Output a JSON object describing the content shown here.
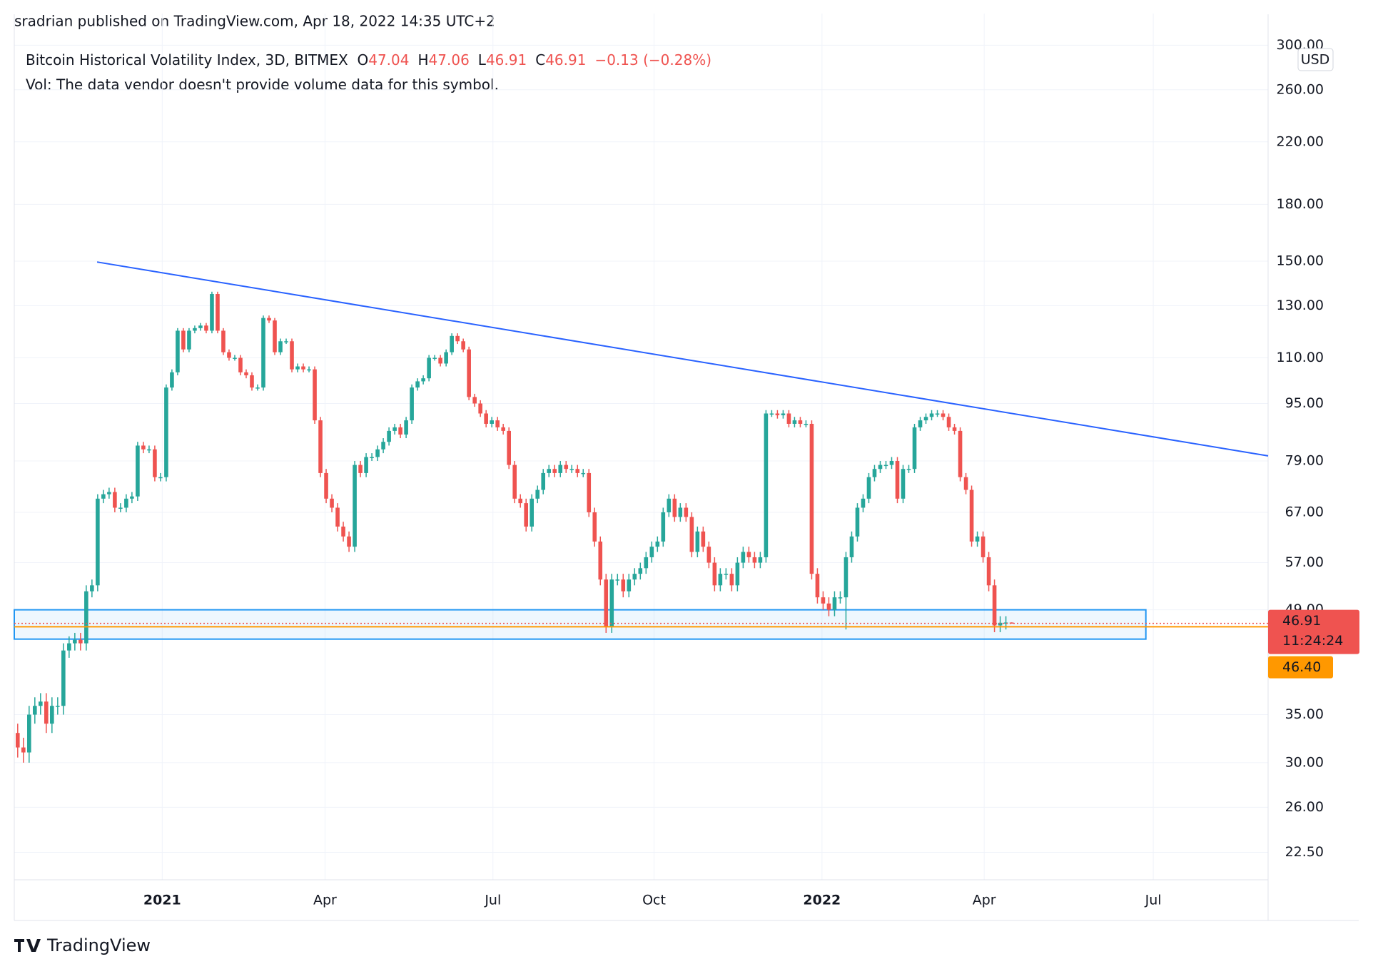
{
  "chart_data": {
    "type": "candlestick",
    "attribution": "sradrian published on TradingView.com, Apr 18, 2022 14:35 UTC+2",
    "title": "Bitcoin Historical Volatility Index, 3D, BITMEX",
    "ohlc_labels": [
      "O",
      "H",
      "L",
      "C"
    ],
    "change": "−0.13 (−0.28%)",
    "volume_note": "Vol: The data vendor doesn't provide volume data for this symbol.",
    "currency": "USD",
    "countdown": "11:24:24",
    "brand": "TradingView",
    "up_color": "#26a69a",
    "down_color": "#ef5350",
    "log_scale": true,
    "grid": true,
    "xlim": [
      -0.6,
      218.9
    ],
    "ylim": [
      20.6,
      310
    ],
    "xticks": [
      {
        "value": 25.3,
        "label": "2021"
      },
      {
        "value": 53.8,
        "label": "Apr"
      },
      {
        "value": 83.2,
        "label": "Jul"
      },
      {
        "value": 111.4,
        "label": "Oct"
      },
      {
        "value": 140.8,
        "label": "2022"
      },
      {
        "value": 169.2,
        "label": "Apr"
      },
      {
        "value": 198.8,
        "label": "Jul"
      }
    ],
    "yticks": [
      {
        "value": 22.5,
        "label": "22.50"
      },
      {
        "value": 26,
        "label": "26.00"
      },
      {
        "value": 30,
        "label": "30.00"
      },
      {
        "value": 35,
        "label": "35.00"
      },
      {
        "value": 49,
        "label": "49.00"
      },
      {
        "value": 57,
        "label": "57.00"
      },
      {
        "value": 67,
        "label": "67.00"
      },
      {
        "value": 79,
        "label": "79.00"
      },
      {
        "value": 95,
        "label": "95.00"
      },
      {
        "value": 110,
        "label": "110.00"
      },
      {
        "value": 130,
        "label": "130.00"
      },
      {
        "value": 150,
        "label": "150.00"
      },
      {
        "value": 180,
        "label": "180.00"
      },
      {
        "value": 220,
        "label": "220.00"
      },
      {
        "value": 260,
        "label": "260.00"
      },
      {
        "value": 300,
        "label": "300.00"
      }
    ],
    "open": [
      33,
      31.5,
      31,
      35,
      36,
      36.5,
      34,
      36,
      36,
      43,
      44,
      44.5,
      44,
      52,
      53,
      70,
      71,
      71.5,
      68,
      68,
      70,
      70.5,
      83,
      82,
      82,
      75,
      75,
      100,
      105,
      120,
      113,
      120,
      121,
      122,
      120,
      135,
      120,
      112,
      110,
      110,
      105,
      104,
      100,
      100,
      125,
      124,
      112,
      116,
      116,
      106,
      107,
      106,
      106,
      90,
      76,
      70,
      68,
      64,
      62,
      60,
      78,
      76,
      80,
      80,
      82,
      84,
      87,
      88,
      86,
      90,
      100,
      102,
      103,
      110,
      110,
      108,
      112,
      118,
      116,
      113,
      97,
      95,
      92,
      89,
      90,
      88,
      87,
      78,
      70,
      69,
      64,
      70,
      72,
      76,
      77,
      76,
      78,
      77,
      77,
      76,
      76,
      67,
      61,
      54,
      46.5,
      54,
      54,
      52,
      54,
      55,
      56,
      58,
      60,
      61,
      67,
      70,
      66,
      68,
      66,
      59,
      63,
      60,
      57,
      53,
      55,
      55,
      53,
      57,
      59,
      58,
      57,
      58,
      92,
      92,
      91.5,
      92,
      89,
      90,
      89,
      89,
      55,
      51,
      50,
      49,
      51,
      51,
      58,
      62,
      68,
      70,
      75,
      77,
      78,
      78,
      79,
      70,
      77,
      77,
      88,
      90,
      91,
      92,
      92,
      91,
      88,
      87,
      75,
      72,
      61,
      62,
      58,
      53,
      46.6,
      47,
      47.04
    ],
    "high": [
      34,
      32.5,
      36,
      37,
      37.5,
      37.5,
      37,
      37,
      44,
      45,
      45.5,
      45.5,
      53,
      54,
      71,
      72,
      72.5,
      72.5,
      69,
      71,
      71.5,
      84,
      84,
      83,
      83,
      76,
      101,
      106,
      121,
      121,
      121,
      122,
      123,
      123,
      136,
      136,
      121,
      113,
      111,
      111,
      106,
      105,
      101,
      126,
      126,
      125,
      117,
      117,
      117,
      108,
      108,
      107,
      107,
      91,
      77,
      71,
      69,
      65,
      63,
      79,
      79,
      81,
      81,
      83,
      85,
      88,
      89,
      89,
      91,
      101,
      103,
      104,
      111,
      111,
      111,
      113,
      119,
      119,
      117,
      114,
      98,
      96,
      93,
      91,
      91,
      89,
      88,
      79,
      71,
      70,
      71,
      73,
      77,
      78,
      78,
      79,
      79,
      78,
      78,
      77,
      77,
      68,
      62,
      55,
      55,
      55,
      55,
      55,
      56,
      57,
      59,
      61,
      62,
      68,
      71,
      71,
      69,
      69,
      67,
      64,
      64,
      61,
      58,
      56,
      56,
      56,
      58,
      60,
      60,
      59,
      59,
      93,
      93,
      93,
      93,
      93,
      91,
      91,
      90,
      90,
      56,
      52,
      51,
      52,
      52,
      59,
      63,
      69,
      71,
      76,
      78,
      79,
      79,
      80,
      80,
      78,
      78,
      89,
      91,
      92,
      93,
      93,
      93,
      92,
      89,
      88,
      76,
      73,
      63,
      63,
      59,
      54,
      48,
      48,
      47.06
    ],
    "low": [
      30.5,
      30,
      30,
      34,
      35,
      33,
      33,
      35,
      35,
      42,
      43,
      43,
      43,
      51,
      52,
      69,
      70,
      67,
      67,
      67,
      69,
      69.5,
      81,
      81,
      74,
      74,
      74,
      99,
      104,
      112,
      112,
      119,
      120,
      119,
      119,
      119,
      111,
      109,
      109,
      104,
      103,
      99,
      99,
      99,
      123,
      111,
      111,
      115,
      105,
      105,
      105,
      105,
      89,
      75,
      69,
      67,
      63,
      61,
      59,
      59,
      75,
      75,
      79,
      79,
      81,
      83,
      86,
      85,
      85,
      89,
      99,
      101,
      102,
      109,
      107,
      107,
      111,
      115,
      112,
      96,
      94,
      91,
      88,
      88,
      87,
      86,
      77,
      69,
      68,
      63,
      63,
      69,
      71,
      75,
      75,
      75,
      76,
      76,
      75,
      75,
      66,
      60,
      53,
      45.5,
      45.5,
      53,
      51,
      51,
      53,
      54,
      55,
      57,
      59,
      60,
      66,
      65,
      65,
      65,
      58,
      58,
      59,
      56,
      52,
      52,
      54,
      52,
      52,
      56,
      57,
      56,
      56,
      57,
      91,
      90.5,
      90.5,
      88,
      88,
      88,
      88,
      54,
      50,
      49,
      48,
      48,
      50,
      46,
      57,
      61,
      67,
      69,
      74,
      76,
      77,
      77,
      69,
      69,
      76,
      76,
      87,
      89,
      90,
      91,
      90,
      87,
      86,
      74,
      71,
      60,
      60,
      57,
      52,
      45.6,
      45.6,
      46,
      46.91
    ],
    "close": [
      31.5,
      31,
      35,
      36,
      36.5,
      34,
      36,
      36,
      43,
      44,
      44.5,
      44,
      52,
      53,
      70,
      71,
      71.5,
      68,
      68,
      70,
      70.5,
      83,
      82,
      82,
      75,
      75,
      100,
      105,
      120,
      113,
      120,
      121,
      122,
      120,
      135,
      120,
      112,
      110,
      110,
      105,
      104,
      100,
      100,
      125,
      124,
      112,
      116,
      116,
      106,
      107,
      106,
      106,
      90,
      76,
      70,
      68,
      64,
      62,
      60,
      78,
      76,
      80,
      80,
      82,
      84,
      87,
      88,
      86,
      90,
      100,
      102,
      103,
      110,
      110,
      108,
      112,
      118,
      116,
      113,
      97,
      95,
      92,
      89,
      90,
      88,
      87,
      78,
      70,
      69,
      64,
      70,
      72,
      76,
      77,
      76,
      78,
      77,
      77,
      76,
      76,
      67,
      61,
      54,
      46.5,
      54,
      54,
      52,
      54,
      55,
      56,
      58,
      60,
      61,
      67,
      70,
      66,
      68,
      66,
      59,
      63,
      60,
      57,
      53,
      55,
      55,
      53,
      57,
      59,
      58,
      57,
      58,
      92,
      92,
      91.5,
      92,
      89,
      90,
      89,
      89,
      55,
      51,
      50,
      49,
      51,
      51,
      58,
      62,
      68,
      70,
      75,
      77,
      78,
      78,
      79,
      70,
      77,
      77,
      88,
      90,
      91,
      92,
      92,
      91,
      88,
      87,
      75,
      72,
      61,
      62,
      58,
      53,
      46.6,
      47,
      47.04,
      46.91
    ],
    "trendline": {
      "color": "#2962ff",
      "x": [
        13.9,
        218.9
      ],
      "y": [
        149.6,
        80.3
      ]
    },
    "zone": {
      "color": "#2196f3",
      "x": [
        -0.6,
        197.5
      ],
      "y": [
        44.6,
        49
      ]
    },
    "alert_line": {
      "color": "#ff9800",
      "value": 46.4,
      "label": "46.40"
    }
  }
}
